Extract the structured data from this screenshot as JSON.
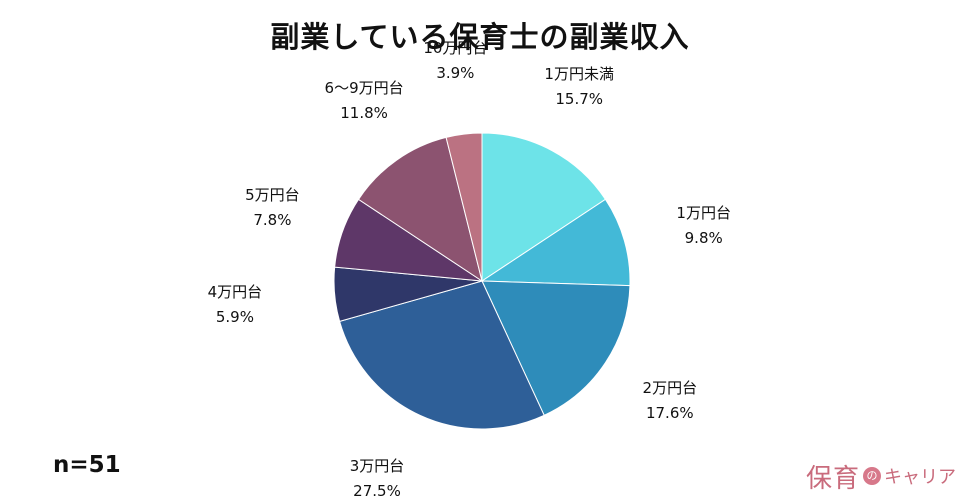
{
  "title": "副業している保育士の副業収入",
  "sample": "n=51",
  "logo": {
    "main": "保育",
    "connector": "の",
    "sub": "キャリア"
  },
  "chart_data": {
    "type": "pie",
    "title": "副業している保育士の副業収入",
    "start_angle_deg": 0,
    "direction": "clockwise",
    "slices": [
      {
        "label": "1万円未満",
        "value": 15.7,
        "value_label": "15.7%",
        "color": "#6de3e8"
      },
      {
        "label": "1万円台",
        "value": 9.8,
        "value_label": "9.8%",
        "color": "#43b9d7"
      },
      {
        "label": "2万円台",
        "value": 17.6,
        "value_label": "17.6%",
        "color": "#2e8cba"
      },
      {
        "label": "3万円台",
        "value": 27.5,
        "value_label": "27.5%",
        "color": "#2e5f98"
      },
      {
        "label": "4万円台",
        "value": 5.9,
        "value_label": "5.9%",
        "color": "#2f3769"
      },
      {
        "label": "5万円台",
        "value": 7.8,
        "value_label": "7.8%",
        "color": "#5e3768"
      },
      {
        "label": "6～9万円台",
        "value": 11.8,
        "value_label": "11.8%",
        "color": "#8c5370"
      },
      {
        "label": "10万円台",
        "value": 3.9,
        "value_label": "3.9%",
        "color": "#bb7282"
      }
    ]
  }
}
